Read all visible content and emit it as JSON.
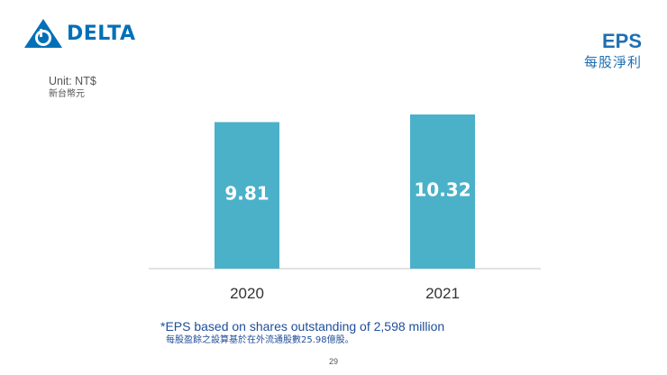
{
  "brand": {
    "name": "DELTA",
    "color": "#0070b8"
  },
  "header": {
    "title_en": "EPS",
    "title_zh": "每股淨利",
    "title_color": "#1f6fb2"
  },
  "unit": {
    "en": "Unit: NT$",
    "zh": "新台幣元",
    "color": "#555555"
  },
  "chart_data": {
    "type": "bar",
    "categories": [
      "2020",
      "2021"
    ],
    "values": [
      9.81,
      10.32
    ],
    "data_labels": [
      "9.81",
      "10.32"
    ],
    "ylim": [
      0,
      10.32
    ],
    "bar_color": "#4ab1c9",
    "axis_color": "#d9d9d9",
    "label_color": "#333333",
    "title": "",
    "xlabel": "",
    "ylabel": ""
  },
  "footnote": {
    "en": "*EPS based on shares outstanding of 2,598 million",
    "zh": "每股盈餘之設算基於在外流通股數25.98億股。",
    "color": "#1f4e9a"
  },
  "page_number": "29"
}
